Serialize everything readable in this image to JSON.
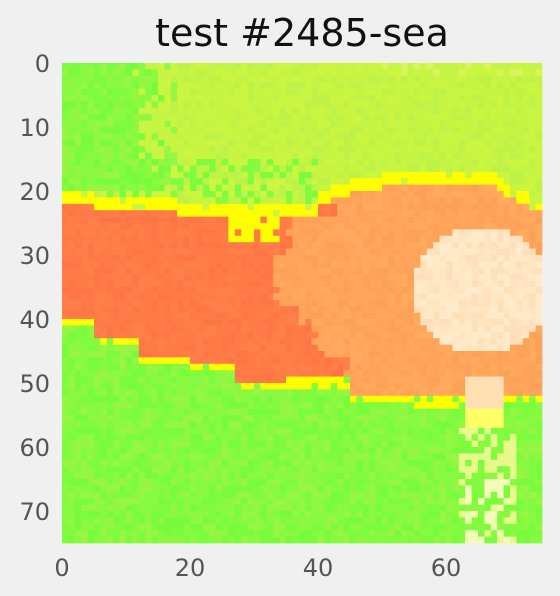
{
  "figure": {
    "title": "test #2485-sea",
    "background": "#f0f0f0"
  },
  "chart_data": {
    "type": "heatmap",
    "title": "test #2485-sea",
    "xlabel": "",
    "ylabel": "",
    "x_ticks": [
      0,
      20,
      40,
      60
    ],
    "y_ticks": [
      0,
      10,
      20,
      30,
      40,
      50,
      60,
      70
    ],
    "x_range": [
      0,
      74
    ],
    "y_range": [
      0,
      74
    ],
    "y_axis_inverted": true,
    "grid": false,
    "palette": {
      "yellow_green": "#c8f542",
      "green": "#7cfc3c",
      "yellow": "#ffff00",
      "orange_red": "#ff7a45",
      "light_orange": "#ffa65a",
      "cream": "#ffe4bf"
    },
    "regions": [
      {
        "name": "sky",
        "color": "yellow_green",
        "rows": [
          0,
          20
        ]
      },
      {
        "name": "sunset-band-left",
        "color": "orange_red",
        "rows": [
          21,
          49
        ],
        "cols": [
          0,
          34
        ]
      },
      {
        "name": "sunset-band-right",
        "color": "light_orange",
        "rows": [
          18,
          52
        ],
        "cols": [
          34,
          74
        ]
      },
      {
        "name": "sun",
        "color": "cream",
        "rows": [
          24,
          46
        ],
        "cols": [
          53,
          74
        ]
      },
      {
        "name": "sea",
        "color": "green",
        "rows": [
          52,
          74
        ]
      }
    ]
  }
}
